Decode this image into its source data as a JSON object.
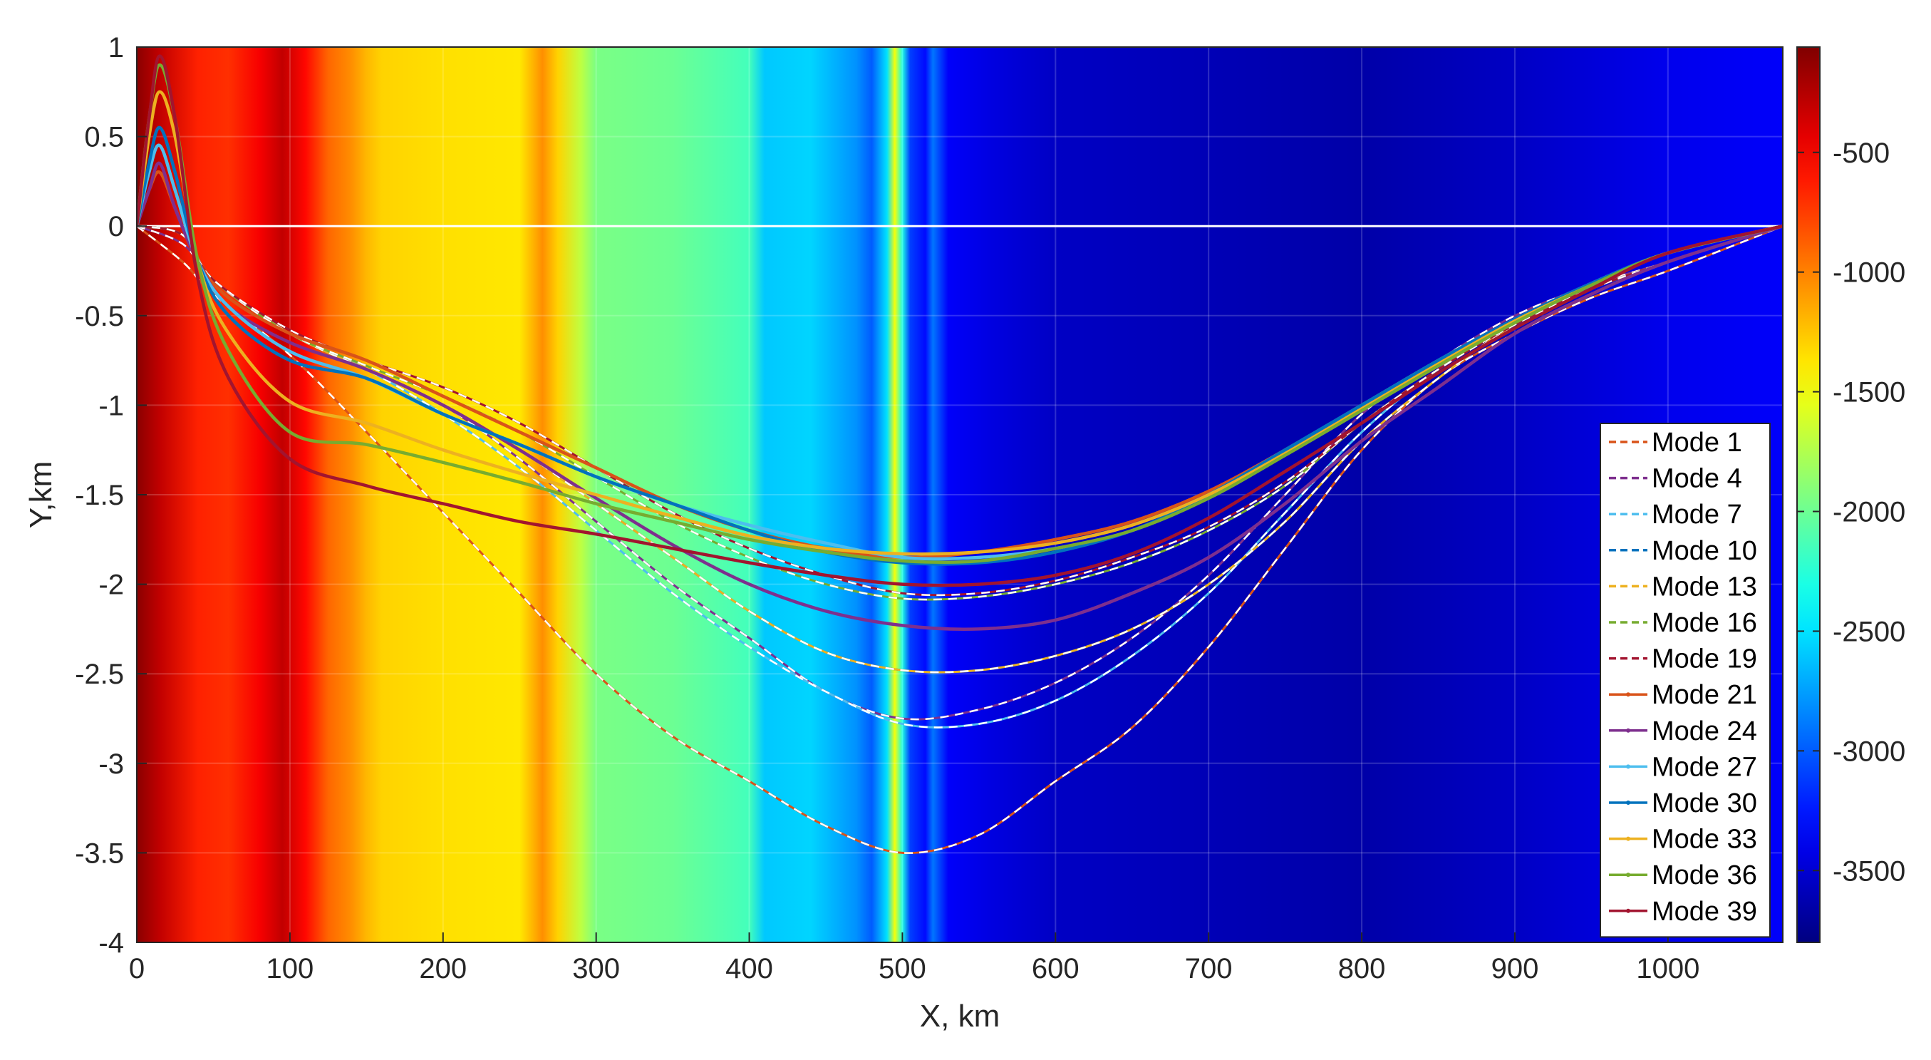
{
  "chart_data": {
    "type": "line",
    "title": "",
    "xlabel": "X, km",
    "ylabel": "Y,km",
    "xlim": [
      0,
      1075
    ],
    "ylim": [
      -4,
      1
    ],
    "xticks": [
      "0",
      "100",
      "200",
      "300",
      "400",
      "500",
      "600",
      "700",
      "800",
      "900",
      "1000"
    ],
    "yticks": [
      "1",
      "0.5",
      "0",
      "-0.5",
      "-1",
      "-1.5",
      "-2",
      "-2.5",
      "-3",
      "-3.5",
      "-4"
    ],
    "grid": true,
    "legend_position": "bottom-right",
    "background_heatmap": {
      "description_free": true,
      "x": [
        0,
        15,
        40,
        60,
        80,
        95,
        110,
        125,
        140,
        150,
        160,
        200,
        250,
        265,
        275,
        290,
        300,
        350,
        400,
        410,
        440,
        470,
        480,
        490,
        495,
        500,
        505,
        510,
        515,
        520,
        530,
        560,
        600,
        700,
        800,
        900,
        1000,
        1075
      ],
      "values": [
        -100,
        -300,
        -650,
        -700,
        -500,
        -300,
        -550,
        -900,
        -1050,
        -1200,
        -1300,
        -1350,
        -1380,
        -1050,
        -1300,
        -1700,
        -1950,
        -2000,
        -2150,
        -2600,
        -2550,
        -2800,
        -3000,
        -2500,
        -1500,
        -2300,
        -3100,
        -3200,
        -3300,
        -2900,
        -3350,
        -3450,
        -3550,
        -3600,
        -3650,
        -3550,
        -3400,
        -3350
      ]
    },
    "colorbar": {
      "min": -3800,
      "max": -60,
      "ticks": [
        -500,
        -1000,
        -1500,
        -2000,
        -2500,
        -3000,
        -3500
      ],
      "tick_labels": [
        "-500",
        "-1000",
        "-1500",
        "-2000",
        "-2500",
        "-3000",
        "-3500"
      ]
    },
    "series": [
      {
        "name": "Mode 1",
        "style": "dashed",
        "color": "#d95319",
        "x": [
          0,
          30,
          50,
          100,
          150,
          200,
          250,
          300,
          350,
          400,
          450,
          500,
          550,
          600,
          650,
          700,
          750,
          800,
          850,
          900,
          950,
          1000,
          1075
        ],
        "y": [
          0,
          -0.2,
          -0.38,
          -0.72,
          -1.15,
          -1.6,
          -2.05,
          -2.5,
          -2.85,
          -3.1,
          -3.35,
          -3.5,
          -3.4,
          -3.1,
          -2.8,
          -2.35,
          -1.8,
          -1.25,
          -0.85,
          -0.6,
          -0.4,
          -0.25,
          0
        ]
      },
      {
        "name": "Mode 4",
        "style": "dashed",
        "color": "#7e2f8e",
        "x": [
          0,
          30,
          50,
          100,
          150,
          200,
          250,
          300,
          350,
          400,
          450,
          500,
          550,
          600,
          650,
          700,
          750,
          800,
          850,
          900,
          950,
          1000,
          1075
        ],
        "y": [
          0,
          -0.1,
          -0.3,
          -0.6,
          -0.8,
          -1.0,
          -1.3,
          -1.65,
          -2.0,
          -2.3,
          -2.6,
          -2.75,
          -2.7,
          -2.55,
          -2.3,
          -1.95,
          -1.5,
          -1.05,
          -0.75,
          -0.5,
          -0.33,
          -0.2,
          0
        ]
      },
      {
        "name": "Mode 7",
        "style": "dashed",
        "color": "#4dbeee",
        "x": [
          0,
          30,
          50,
          100,
          150,
          200,
          250,
          300,
          350,
          400,
          450,
          500,
          550,
          600,
          650,
          700,
          750,
          800,
          850,
          900,
          950,
          1000,
          1075
        ],
        "y": [
          0,
          -0.05,
          -0.3,
          -0.6,
          -0.8,
          -1.05,
          -1.35,
          -1.7,
          -2.05,
          -2.35,
          -2.6,
          -2.78,
          -2.78,
          -2.65,
          -2.4,
          -2.05,
          -1.6,
          -1.15,
          -0.8,
          -0.55,
          -0.35,
          -0.2,
          0
        ]
      },
      {
        "name": "Mode 10",
        "style": "dashed",
        "color": "#0072bd",
        "x": [
          0,
          30,
          50,
          100,
          150,
          200,
          250,
          300,
          350,
          400,
          450,
          500,
          550,
          600,
          650,
          700,
          750,
          800,
          850,
          900,
          950,
          1000,
          1075
        ],
        "y": [
          0,
          -0.05,
          -0.3,
          -0.6,
          -0.8,
          -1.0,
          -1.25,
          -1.55,
          -1.85,
          -2.15,
          -2.38,
          -2.48,
          -2.48,
          -2.4,
          -2.25,
          -2.0,
          -1.65,
          -1.2,
          -0.85,
          -0.55,
          -0.35,
          -0.2,
          0
        ]
      },
      {
        "name": "Mode 13",
        "style": "dashed",
        "color": "#edb120",
        "x": [
          0,
          30,
          50,
          100,
          150,
          200,
          250,
          300,
          350,
          400,
          450,
          500,
          550,
          600,
          650,
          700,
          750,
          800,
          850,
          900,
          950,
          1000,
          1075
        ],
        "y": [
          0,
          -0.05,
          -0.3,
          -0.6,
          -0.8,
          -1.0,
          -1.25,
          -1.55,
          -1.85,
          -2.15,
          -2.38,
          -2.48,
          -2.48,
          -2.4,
          -2.25,
          -2.0,
          -1.65,
          -1.2,
          -0.85,
          -0.55,
          -0.35,
          -0.2,
          0
        ]
      },
      {
        "name": "Mode 16",
        "style": "dashed",
        "color": "#77ac30",
        "x": [
          0,
          30,
          50,
          100,
          150,
          200,
          250,
          300,
          350,
          400,
          450,
          500,
          550,
          600,
          650,
          700,
          750,
          800,
          850,
          900,
          950,
          1000,
          1075
        ],
        "y": [
          0,
          -0.05,
          -0.3,
          -0.6,
          -0.78,
          -0.95,
          -1.15,
          -1.4,
          -1.65,
          -1.85,
          -2.0,
          -2.08,
          -2.07,
          -2.0,
          -1.88,
          -1.7,
          -1.45,
          -1.1,
          -0.8,
          -0.55,
          -0.35,
          -0.2,
          0
        ]
      },
      {
        "name": "Mode 19",
        "style": "dashed",
        "color": "#a2142f",
        "x": [
          0,
          30,
          50,
          100,
          150,
          200,
          250,
          300,
          350,
          400,
          450,
          500,
          550,
          600,
          650,
          700,
          750,
          800,
          850,
          900,
          950,
          1000,
          1075
        ],
        "y": [
          0,
          -0.05,
          -0.3,
          -0.58,
          -0.75,
          -0.9,
          -1.1,
          -1.35,
          -1.6,
          -1.8,
          -1.95,
          -2.05,
          -2.05,
          -1.98,
          -1.85,
          -1.68,
          -1.43,
          -1.1,
          -0.8,
          -0.55,
          -0.35,
          -0.2,
          0
        ]
      },
      {
        "name": "Mode 21",
        "style": "solid",
        "color": "#d95319",
        "x": [
          0,
          8,
          15,
          25,
          40,
          60,
          100,
          150,
          200,
          250,
          300,
          350,
          400,
          450,
          500,
          550,
          600,
          650,
          700,
          750,
          800,
          850,
          900,
          950,
          1000,
          1075
        ],
        "y": [
          0,
          0.2,
          0.3,
          0.1,
          -0.2,
          -0.4,
          -0.6,
          -0.75,
          -0.95,
          -1.15,
          -1.35,
          -1.55,
          -1.7,
          -1.8,
          -1.85,
          -1.82,
          -1.75,
          -1.65,
          -1.48,
          -1.25,
          -1.0,
          -0.75,
          -0.52,
          -0.32,
          -0.15,
          0
        ]
      },
      {
        "name": "Mode 24",
        "style": "solid",
        "color": "#7e2f8e",
        "x": [
          0,
          8,
          15,
          25,
          40,
          60,
          100,
          150,
          200,
          250,
          300,
          350,
          400,
          450,
          500,
          550,
          600,
          650,
          700,
          750,
          800,
          850,
          900,
          950,
          1000,
          1075
        ],
        "y": [
          0,
          0.2,
          0.35,
          0.1,
          -0.2,
          -0.45,
          -0.65,
          -0.8,
          -1.0,
          -1.25,
          -1.52,
          -1.78,
          -2.0,
          -2.15,
          -2.23,
          -2.25,
          -2.2,
          -2.05,
          -1.85,
          -1.55,
          -1.2,
          -0.9,
          -0.6,
          -0.38,
          -0.2,
          0
        ]
      },
      {
        "name": "Mode 27",
        "style": "solid",
        "color": "#4dbeee",
        "x": [
          0,
          8,
          15,
          25,
          40,
          60,
          100,
          150,
          200,
          250,
          300,
          350,
          400,
          450,
          500,
          550,
          600,
          650,
          700,
          750,
          800,
          850,
          900,
          950,
          1000,
          1075
        ],
        "y": [
          0,
          0.3,
          0.45,
          0.2,
          -0.2,
          -0.45,
          -0.7,
          -0.85,
          -1.05,
          -1.22,
          -1.4,
          -1.55,
          -1.67,
          -1.77,
          -1.85,
          -1.85,
          -1.8,
          -1.7,
          -1.5,
          -1.25,
          -1.0,
          -0.75,
          -0.52,
          -0.32,
          -0.15,
          0
        ]
      },
      {
        "name": "Mode 30",
        "style": "solid",
        "color": "#0072bd",
        "x": [
          0,
          8,
          15,
          25,
          40,
          60,
          100,
          150,
          200,
          250,
          300,
          350,
          400,
          450,
          500,
          550,
          600,
          650,
          700,
          750,
          800,
          850,
          900,
          950,
          1000,
          1075
        ],
        "y": [
          0,
          0.35,
          0.55,
          0.3,
          -0.2,
          -0.5,
          -0.75,
          -0.85,
          -1.05,
          -1.22,
          -1.4,
          -1.55,
          -1.7,
          -1.82,
          -1.88,
          -1.88,
          -1.82,
          -1.7,
          -1.5,
          -1.25,
          -1.0,
          -0.75,
          -0.52,
          -0.32,
          -0.15,
          0
        ]
      },
      {
        "name": "Mode 33",
        "style": "solid",
        "color": "#edb120",
        "x": [
          0,
          8,
          15,
          25,
          40,
          60,
          100,
          150,
          200,
          250,
          300,
          350,
          400,
          450,
          500,
          550,
          600,
          650,
          700,
          750,
          800,
          850,
          900,
          950,
          1000,
          1075
        ],
        "y": [
          0,
          0.5,
          0.75,
          0.5,
          -0.2,
          -0.6,
          -0.98,
          -1.1,
          -1.25,
          -1.38,
          -1.5,
          -1.62,
          -1.73,
          -1.8,
          -1.83,
          -1.82,
          -1.77,
          -1.67,
          -1.5,
          -1.27,
          -1.02,
          -0.77,
          -0.53,
          -0.33,
          -0.15,
          0
        ]
      },
      {
        "name": "Mode 36",
        "style": "solid",
        "color": "#77ac30",
        "x": [
          0,
          8,
          15,
          25,
          40,
          60,
          100,
          150,
          200,
          250,
          300,
          350,
          400,
          450,
          500,
          550,
          600,
          650,
          700,
          750,
          800,
          850,
          900,
          950,
          1000,
          1075
        ],
        "y": [
          0,
          0.6,
          0.9,
          0.6,
          -0.2,
          -0.7,
          -1.15,
          -1.22,
          -1.32,
          -1.43,
          -1.55,
          -1.65,
          -1.75,
          -1.82,
          -1.87,
          -1.87,
          -1.8,
          -1.7,
          -1.52,
          -1.28,
          -1.03,
          -0.78,
          -0.54,
          -0.33,
          -0.15,
          0
        ]
      },
      {
        "name": "Mode 39",
        "style": "solid",
        "color": "#a2142f",
        "x": [
          0,
          8,
          15,
          25,
          40,
          60,
          100,
          150,
          200,
          250,
          300,
          350,
          400,
          450,
          500,
          550,
          600,
          650,
          700,
          750,
          800,
          850,
          900,
          950,
          1000,
          1075
        ],
        "y": [
          0,
          0.6,
          0.95,
          0.6,
          -0.3,
          -0.85,
          -1.3,
          -1.45,
          -1.55,
          -1.65,
          -1.72,
          -1.8,
          -1.88,
          -1.95,
          -2.0,
          -2.0,
          -1.95,
          -1.83,
          -1.63,
          -1.37,
          -1.1,
          -0.82,
          -0.57,
          -0.35,
          -0.15,
          0
        ]
      }
    ]
  }
}
